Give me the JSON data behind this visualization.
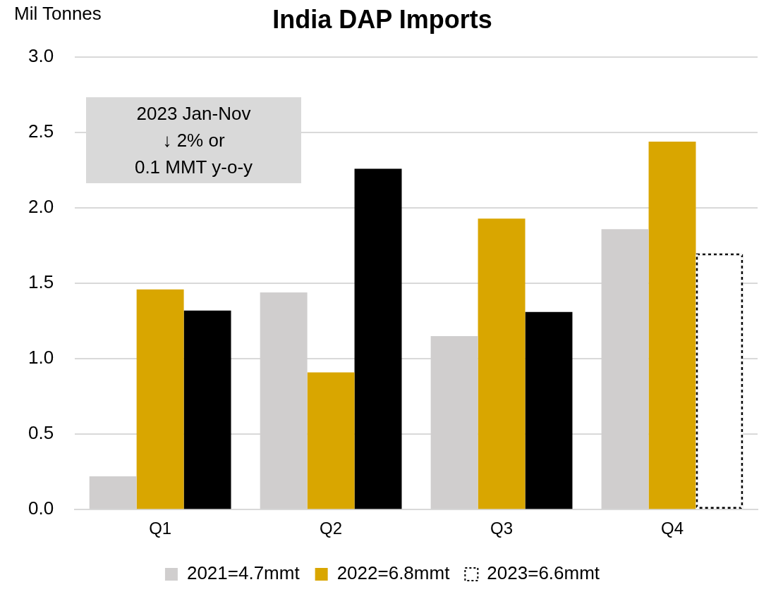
{
  "chart_data": {
    "type": "bar",
    "title": "India DAP Imports",
    "ylabel": "Mil Tonnes",
    "categories": [
      "Q1",
      "Q2",
      "Q3",
      "Q4"
    ],
    "series": [
      {
        "name": "2021=4.7mmt",
        "color": "#d0cece",
        "values": [
          0.22,
          1.44,
          1.15,
          1.86
        ]
      },
      {
        "name": "2022=6.8mmt",
        "color": "#d9a600",
        "values": [
          1.46,
          0.91,
          1.93,
          2.44
        ]
      },
      {
        "name": "2023=6.6mmt",
        "color": "#000000",
        "colors": [
          "#000000",
          "#000000",
          "#000000",
          "#ffffff"
        ],
        "line_style": "dotted",
        "values": [
          1.32,
          2.26,
          1.31,
          1.7
        ]
      }
    ],
    "ylim": [
      0,
      3
    ],
    "yticks": [
      {
        "value": 0,
        "label": "0.0"
      },
      {
        "value": 0.5,
        "label": "0.5"
      },
      {
        "value": 1,
        "label": "1.0"
      },
      {
        "value": 1.5,
        "label": "1.5"
      },
      {
        "value": 2,
        "label": "2.0"
      },
      {
        "value": 2.5,
        "label": "2.5"
      },
      {
        "value": 3,
        "label": "3.0"
      }
    ],
    "grid": "y",
    "legend": "bottom",
    "annotations": [
      "2023 Jan-Nov\n↓ 2% or\n0.1 MMT y-o-y"
    ]
  }
}
